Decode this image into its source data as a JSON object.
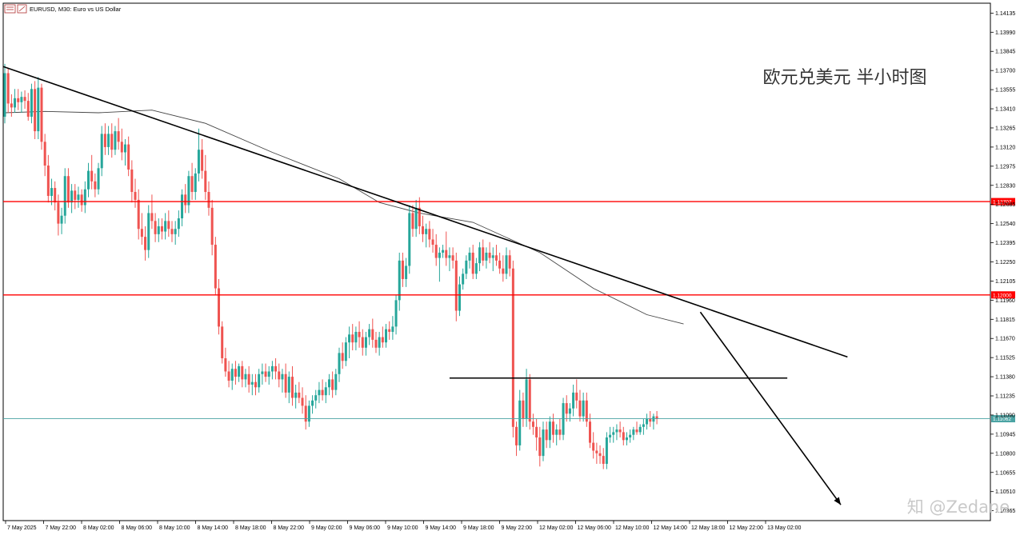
{
  "chart_data": {
    "type": "candlestick",
    "symbol_header": "EURUSD, M30:  Euro vs US Dollar",
    "title": "欧元兑美元 半小时图",
    "watermark": "知 @Zedane",
    "y_ticks": [
      "1.14135",
      "1.13990",
      "1.13845",
      "1.13700",
      "1.13555",
      "1.13410",
      "1.13265",
      "1.13120",
      "1.12975",
      "1.12830",
      "1.12685",
      "1.12540",
      "1.12395",
      "1.12250",
      "1.12105",
      "1.11960",
      "1.11815",
      "1.11670",
      "1.11525",
      "1.11380",
      "1.11235",
      "1.11090",
      "1.10945",
      "1.10800",
      "1.10655",
      "1.10510",
      "1.10365"
    ],
    "ylim": [
      1.1029,
      1.1421
    ],
    "x_ticks": [
      "7 May 2025",
      "7 May 22:00",
      "8 May 02:00",
      "8 May 06:00",
      "8 May 10:00",
      "8 May 14:00",
      "8 May 18:00",
      "8 May 22:00",
      "9 May 02:00",
      "9 May 06:00",
      "9 May 10:00",
      "9 May 14:00",
      "9 May 18:00",
      "9 May 22:00",
      "12 May 02:00",
      "12 May 06:00",
      "12 May 10:00",
      "12 May 14:00",
      "12 May 18:00",
      "12 May 22:00",
      "13 May 02:00"
    ],
    "resistance_levels": [
      {
        "value": 1.12707,
        "label": "1.12707",
        "color": "#ff0000"
      },
      {
        "value": 1.12,
        "label": "1.12000",
        "color": "#ff0000"
      }
    ],
    "current_price": {
      "value": 1.11062,
      "label": "1.11062",
      "color": "#4aa3a3"
    },
    "neckline": {
      "value": 1.1137,
      "from_bar": 133,
      "to_bar": 234
    },
    "trendline": [
      {
        "bar": 0,
        "price": 1.1373
      },
      {
        "bar": 252,
        "price": 1.1153
      }
    ],
    "projection_arrow": [
      {
        "bar": 208,
        "price": 1.1187
      },
      {
        "bar": 250,
        "price": 1.1041
      }
    ],
    "up_color": "#26a69a",
    "down_color": "#ef5350",
    "grid": false,
    "moving_average": [
      [
        0,
        1.1338
      ],
      [
        12,
        1.1339
      ],
      [
        28,
        1.1338
      ],
      [
        44,
        1.134
      ],
      [
        60,
        1.133
      ],
      [
        80,
        1.1308
      ],
      [
        100,
        1.1288
      ],
      [
        112,
        1.127
      ],
      [
        124,
        1.1262
      ],
      [
        140,
        1.1255
      ],
      [
        160,
        1.1232
      ],
      [
        176,
        1.1205
      ],
      [
        192,
        1.1185
      ],
      [
        203,
        1.1178
      ]
    ],
    "candles": [
      [
        1.1335,
        1.1375,
        1.133,
        1.1368
      ],
      [
        1.1368,
        1.1372,
        1.1338,
        1.1345
      ],
      [
        1.1345,
        1.1352,
        1.1335,
        1.1342
      ],
      [
        1.1342,
        1.1356,
        1.1338,
        1.1349
      ],
      [
        1.1349,
        1.1356,
        1.134,
        1.1346
      ],
      [
        1.1346,
        1.1354,
        1.1338,
        1.135
      ],
      [
        1.135,
        1.1355,
        1.1341,
        1.1347
      ],
      [
        1.1347,
        1.1353,
        1.1332,
        1.1335
      ],
      [
        1.1335,
        1.136,
        1.133,
        1.1356
      ],
      [
        1.1356,
        1.1362,
        1.1318,
        1.1324
      ],
      [
        1.1324,
        1.1365,
        1.1318,
        1.1357
      ],
      [
        1.1357,
        1.136,
        1.131,
        1.1316
      ],
      [
        1.1316,
        1.1322,
        1.129,
        1.1298
      ],
      [
        1.1298,
        1.1306,
        1.127,
        1.1275
      ],
      [
        1.1275,
        1.1288,
        1.1268,
        1.1281
      ],
      [
        1.1281,
        1.1286,
        1.1264,
        1.127
      ],
      [
        1.127,
        1.1276,
        1.1245,
        1.1254
      ],
      [
        1.1254,
        1.1266,
        1.1246,
        1.126
      ],
      [
        1.126,
        1.1296,
        1.1254,
        1.129
      ],
      [
        1.129,
        1.1296,
        1.1266,
        1.127
      ],
      [
        1.127,
        1.1284,
        1.1262,
        1.1279
      ],
      [
        1.1279,
        1.1284,
        1.1265,
        1.1272
      ],
      [
        1.1272,
        1.1282,
        1.1266,
        1.1276
      ],
      [
        1.1276,
        1.128,
        1.1263,
        1.1268
      ],
      [
        1.1268,
        1.1286,
        1.1262,
        1.128
      ],
      [
        1.128,
        1.13,
        1.1274,
        1.1294
      ],
      [
        1.1294,
        1.1306,
        1.128,
        1.1286
      ],
      [
        1.1286,
        1.1292,
        1.1274,
        1.128
      ],
      [
        1.128,
        1.13,
        1.1276,
        1.1296
      ],
      [
        1.1296,
        1.1328,
        1.129,
        1.1322
      ],
      [
        1.1322,
        1.133,
        1.1306,
        1.1312
      ],
      [
        1.1312,
        1.1328,
        1.1306,
        1.1322
      ],
      [
        1.1322,
        1.133,
        1.1304,
        1.131
      ],
      [
        1.131,
        1.1328,
        1.1306,
        1.1324
      ],
      [
        1.1324,
        1.1334,
        1.131,
        1.1316
      ],
      [
        1.1316,
        1.1326,
        1.1302,
        1.1308
      ],
      [
        1.1308,
        1.1318,
        1.1298,
        1.1314
      ],
      [
        1.1314,
        1.132,
        1.129,
        1.1295
      ],
      [
        1.1295,
        1.1302,
        1.127,
        1.1278
      ],
      [
        1.1278,
        1.1288,
        1.1266,
        1.1272
      ],
      [
        1.1272,
        1.128,
        1.1242,
        1.125
      ],
      [
        1.125,
        1.1262,
        1.1238,
        1.1244
      ],
      [
        1.1244,
        1.1252,
        1.1226,
        1.1234
      ],
      [
        1.1234,
        1.1268,
        1.1228,
        1.1262
      ],
      [
        1.1262,
        1.1276,
        1.125,
        1.1256
      ],
      [
        1.1256,
        1.1262,
        1.124,
        1.1246
      ],
      [
        1.1246,
        1.1258,
        1.124,
        1.1252
      ],
      [
        1.1252,
        1.1258,
        1.1242,
        1.1248
      ],
      [
        1.1248,
        1.1262,
        1.1242,
        1.1256
      ],
      [
        1.1256,
        1.1264,
        1.1244,
        1.125
      ],
      [
        1.125,
        1.1256,
        1.124,
        1.1246
      ],
      [
        1.1246,
        1.1256,
        1.1238,
        1.125
      ],
      [
        1.125,
        1.1264,
        1.1244,
        1.1258
      ],
      [
        1.1258,
        1.128,
        1.1252,
        1.1276
      ],
      [
        1.1276,
        1.1284,
        1.1262,
        1.1268
      ],
      [
        1.1268,
        1.1294,
        1.1262,
        1.129
      ],
      [
        1.129,
        1.13,
        1.1272,
        1.1278
      ],
      [
        1.1278,
        1.1296,
        1.1272,
        1.1292
      ],
      [
        1.1292,
        1.1326,
        1.1286,
        1.131
      ],
      [
        1.131,
        1.1318,
        1.1288,
        1.1294
      ],
      [
        1.1294,
        1.1306,
        1.1272,
        1.1278
      ],
      [
        1.1278,
        1.1286,
        1.126,
        1.1266
      ],
      [
        1.1266,
        1.1272,
        1.123,
        1.1238
      ],
      [
        1.1238,
        1.1244,
        1.12,
        1.1205
      ],
      [
        1.1205,
        1.1212,
        1.117,
        1.1176
      ],
      [
        1.1176,
        1.118,
        1.1148,
        1.1152
      ],
      [
        1.1152,
        1.116,
        1.1138,
        1.1142
      ],
      [
        1.1142,
        1.115,
        1.113,
        1.1135
      ],
      [
        1.1135,
        1.1148,
        1.1128,
        1.1144
      ],
      [
        1.1144,
        1.115,
        1.1132,
        1.1138
      ],
      [
        1.1138,
        1.1148,
        1.1134,
        1.1146
      ],
      [
        1.1146,
        1.115,
        1.113,
        1.1136
      ],
      [
        1.1136,
        1.1144,
        1.113,
        1.114
      ],
      [
        1.114,
        1.1146,
        1.1126,
        1.1132
      ],
      [
        1.1132,
        1.114,
        1.1124,
        1.1134
      ],
      [
        1.1134,
        1.114,
        1.1124,
        1.113
      ],
      [
        1.113,
        1.1144,
        1.1126,
        1.114
      ],
      [
        1.114,
        1.1148,
        1.1132,
        1.1142
      ],
      [
        1.1142,
        1.1148,
        1.1134,
        1.1138
      ],
      [
        1.1138,
        1.1146,
        1.1132,
        1.1142
      ],
      [
        1.1142,
        1.115,
        1.1136,
        1.1146
      ],
      [
        1.1146,
        1.1152,
        1.1136,
        1.1142
      ],
      [
        1.1142,
        1.1148,
        1.113,
        1.1136
      ],
      [
        1.1136,
        1.1144,
        1.1126,
        1.114
      ],
      [
        1.114,
        1.1148,
        1.1122,
        1.1126
      ],
      [
        1.1126,
        1.1142,
        1.1118,
        1.1138
      ],
      [
        1.1138,
        1.1146,
        1.1116,
        1.1122
      ],
      [
        1.1122,
        1.1132,
        1.1114,
        1.1126
      ],
      [
        1.1126,
        1.1134,
        1.1118,
        1.1122
      ],
      [
        1.1122,
        1.113,
        1.111,
        1.1116
      ],
      [
        1.1116,
        1.1124,
        1.1098,
        1.1104
      ],
      [
        1.1104,
        1.112,
        1.11,
        1.1116
      ],
      [
        1.1116,
        1.1124,
        1.111,
        1.112
      ],
      [
        1.112,
        1.1128,
        1.1114,
        1.1124
      ],
      [
        1.1124,
        1.1134,
        1.1118,
        1.1128
      ],
      [
        1.1128,
        1.1136,
        1.112,
        1.1124
      ],
      [
        1.1124,
        1.1134,
        1.1118,
        1.113
      ],
      [
        1.113,
        1.114,
        1.1124,
        1.1136
      ],
      [
        1.1136,
        1.1142,
        1.1122,
        1.1128
      ],
      [
        1.1128,
        1.1144,
        1.1124,
        1.114
      ],
      [
        1.114,
        1.116,
        1.1134,
        1.1156
      ],
      [
        1.1156,
        1.1164,
        1.1144,
        1.115
      ],
      [
        1.115,
        1.1168,
        1.1146,
        1.1164
      ],
      [
        1.1164,
        1.1176,
        1.1152,
        1.117
      ],
      [
        1.117,
        1.1178,
        1.1158,
        1.1164
      ],
      [
        1.1164,
        1.1176,
        1.1158,
        1.1172
      ],
      [
        1.1172,
        1.118,
        1.116,
        1.1168
      ],
      [
        1.1168,
        1.1174,
        1.1154,
        1.116
      ],
      [
        1.116,
        1.1172,
        1.1154,
        1.1168
      ],
      [
        1.1168,
        1.1178,
        1.1162,
        1.1174
      ],
      [
        1.1174,
        1.1182,
        1.116,
        1.1166
      ],
      [
        1.1166,
        1.1172,
        1.1156,
        1.116
      ],
      [
        1.116,
        1.1172,
        1.1154,
        1.1168
      ],
      [
        1.1168,
        1.1176,
        1.116,
        1.1164
      ],
      [
        1.1164,
        1.1178,
        1.116,
        1.1174
      ],
      [
        1.1174,
        1.118,
        1.1166,
        1.1172
      ],
      [
        1.1172,
        1.1184,
        1.1166,
        1.1176
      ],
      [
        1.1176,
        1.12,
        1.117,
        1.1196
      ],
      [
        1.1196,
        1.1232,
        1.1188,
        1.1226
      ],
      [
        1.1226,
        1.1232,
        1.1206,
        1.1212
      ],
      [
        1.1212,
        1.1228,
        1.1206,
        1.1222
      ],
      [
        1.1222,
        1.1268,
        1.1216,
        1.1262
      ],
      [
        1.1262,
        1.1268,
        1.1244,
        1.125
      ],
      [
        1.125,
        1.1272,
        1.1244,
        1.1266
      ],
      [
        1.1266,
        1.1274,
        1.1246,
        1.1252
      ],
      [
        1.1252,
        1.126,
        1.124,
        1.1246
      ],
      [
        1.1246,
        1.1254,
        1.1236,
        1.125
      ],
      [
        1.125,
        1.1256,
        1.1236,
        1.1242
      ],
      [
        1.1242,
        1.125,
        1.1232,
        1.1238
      ],
      [
        1.1238,
        1.1246,
        1.1222,
        1.1228
      ],
      [
        1.1228,
        1.1236,
        1.121,
        1.1232
      ],
      [
        1.1232,
        1.1238,
        1.1228,
        1.1234
      ],
      [
        1.1234,
        1.1248,
        1.1222,
        1.1228
      ],
      [
        1.1228,
        1.1236,
        1.1218,
        1.123
      ],
      [
        1.123,
        1.1236,
        1.122,
        1.1226
      ],
      [
        1.1226,
        1.1232,
        1.118,
        1.1188
      ],
      [
        1.1188,
        1.1214,
        1.1184,
        1.1208
      ],
      [
        1.1208,
        1.122,
        1.1204,
        1.1216
      ],
      [
        1.1216,
        1.123,
        1.1212,
        1.1226
      ],
      [
        1.1226,
        1.1236,
        1.122,
        1.1232
      ],
      [
        1.1232,
        1.1238,
        1.1212,
        1.1216
      ],
      [
        1.1216,
        1.1228,
        1.1212,
        1.1224
      ],
      [
        1.1224,
        1.124,
        1.1218,
        1.1236
      ],
      [
        1.1236,
        1.1242,
        1.1222,
        1.1226
      ],
      [
        1.1226,
        1.1236,
        1.122,
        1.1232
      ],
      [
        1.1232,
        1.124,
        1.1224,
        1.1228
      ],
      [
        1.1228,
        1.1236,
        1.1218,
        1.123
      ],
      [
        1.123,
        1.1238,
        1.1222,
        1.1226
      ],
      [
        1.1226,
        1.1232,
        1.1216,
        1.122
      ],
      [
        1.122,
        1.123,
        1.121,
        1.1216
      ],
      [
        1.1216,
        1.1236,
        1.1212,
        1.123
      ],
      [
        1.123,
        1.1234,
        1.1214,
        1.122
      ],
      [
        1.122,
        1.1226,
        1.1092,
        1.11
      ],
      [
        1.11,
        1.1104,
        1.1078,
        1.1086
      ],
      [
        1.1086,
        1.1128,
        1.1082,
        1.112
      ],
      [
        1.112,
        1.1126,
        1.11,
        1.1106
      ],
      [
        1.1106,
        1.1144,
        1.11,
        1.1136
      ],
      [
        1.1136,
        1.114,
        1.1098,
        1.1104
      ],
      [
        1.1104,
        1.111,
        1.1094,
        1.11
      ],
      [
        1.11,
        1.1106,
        1.1082,
        1.1092
      ],
      [
        1.1092,
        1.11,
        1.107,
        1.1078
      ],
      [
        1.1078,
        1.1104,
        1.1074,
        1.1098
      ],
      [
        1.1098,
        1.1104,
        1.1084,
        1.109
      ],
      [
        1.109,
        1.1108,
        1.1084,
        1.1104
      ],
      [
        1.1104,
        1.111,
        1.1088,
        1.1094
      ],
      [
        1.1094,
        1.1102,
        1.1086,
        1.1098
      ],
      [
        1.1098,
        1.1106,
        1.109,
        1.1094
      ],
      [
        1.1094,
        1.1122,
        1.109,
        1.1118
      ],
      [
        1.1118,
        1.1124,
        1.1104,
        1.111
      ],
      [
        1.111,
        1.1118,
        1.1104,
        1.1114
      ],
      [
        1.1114,
        1.1132,
        1.1108,
        1.1126
      ],
      [
        1.1126,
        1.1136,
        1.1114,
        1.112
      ],
      [
        1.112,
        1.1128,
        1.1104,
        1.1108
      ],
      [
        1.1108,
        1.1126,
        1.1104,
        1.112
      ],
      [
        1.112,
        1.1126,
        1.11,
        1.1104
      ],
      [
        1.1104,
        1.111,
        1.1084,
        1.1088
      ],
      [
        1.1088,
        1.1096,
        1.1076,
        1.1082
      ],
      [
        1.1082,
        1.1088,
        1.1072,
        1.108
      ],
      [
        1.108,
        1.1086,
        1.1072,
        1.1078
      ],
      [
        1.1078,
        1.1084,
        1.1068,
        1.1072
      ],
      [
        1.1072,
        1.1096,
        1.1068,
        1.1092
      ],
      [
        1.1092,
        1.11,
        1.1088,
        1.1094
      ],
      [
        1.1094,
        1.11,
        1.1088,
        1.1096
      ],
      [
        1.1096,
        1.1102,
        1.109,
        1.1098
      ],
      [
        1.1098,
        1.1104,
        1.1092,
        1.1096
      ],
      [
        1.1096,
        1.11,
        1.1086,
        1.109
      ],
      [
        1.109,
        1.1096,
        1.1086,
        1.1092
      ],
      [
        1.1092,
        1.1098,
        1.1088,
        1.1094
      ],
      [
        1.1094,
        1.11,
        1.109,
        1.1098
      ],
      [
        1.1098,
        1.1104,
        1.1094,
        1.1096
      ],
      [
        1.1096,
        1.1102,
        1.1094,
        1.11
      ],
      [
        1.11,
        1.1106,
        1.1094,
        1.1102
      ],
      [
        1.1102,
        1.111,
        1.1098,
        1.1106
      ],
      [
        1.1106,
        1.1112,
        1.11,
        1.1104
      ],
      [
        1.1104,
        1.111,
        1.1098,
        1.1108
      ],
      [
        1.1108,
        1.1112,
        1.1102,
        1.1106
      ]
    ]
  }
}
